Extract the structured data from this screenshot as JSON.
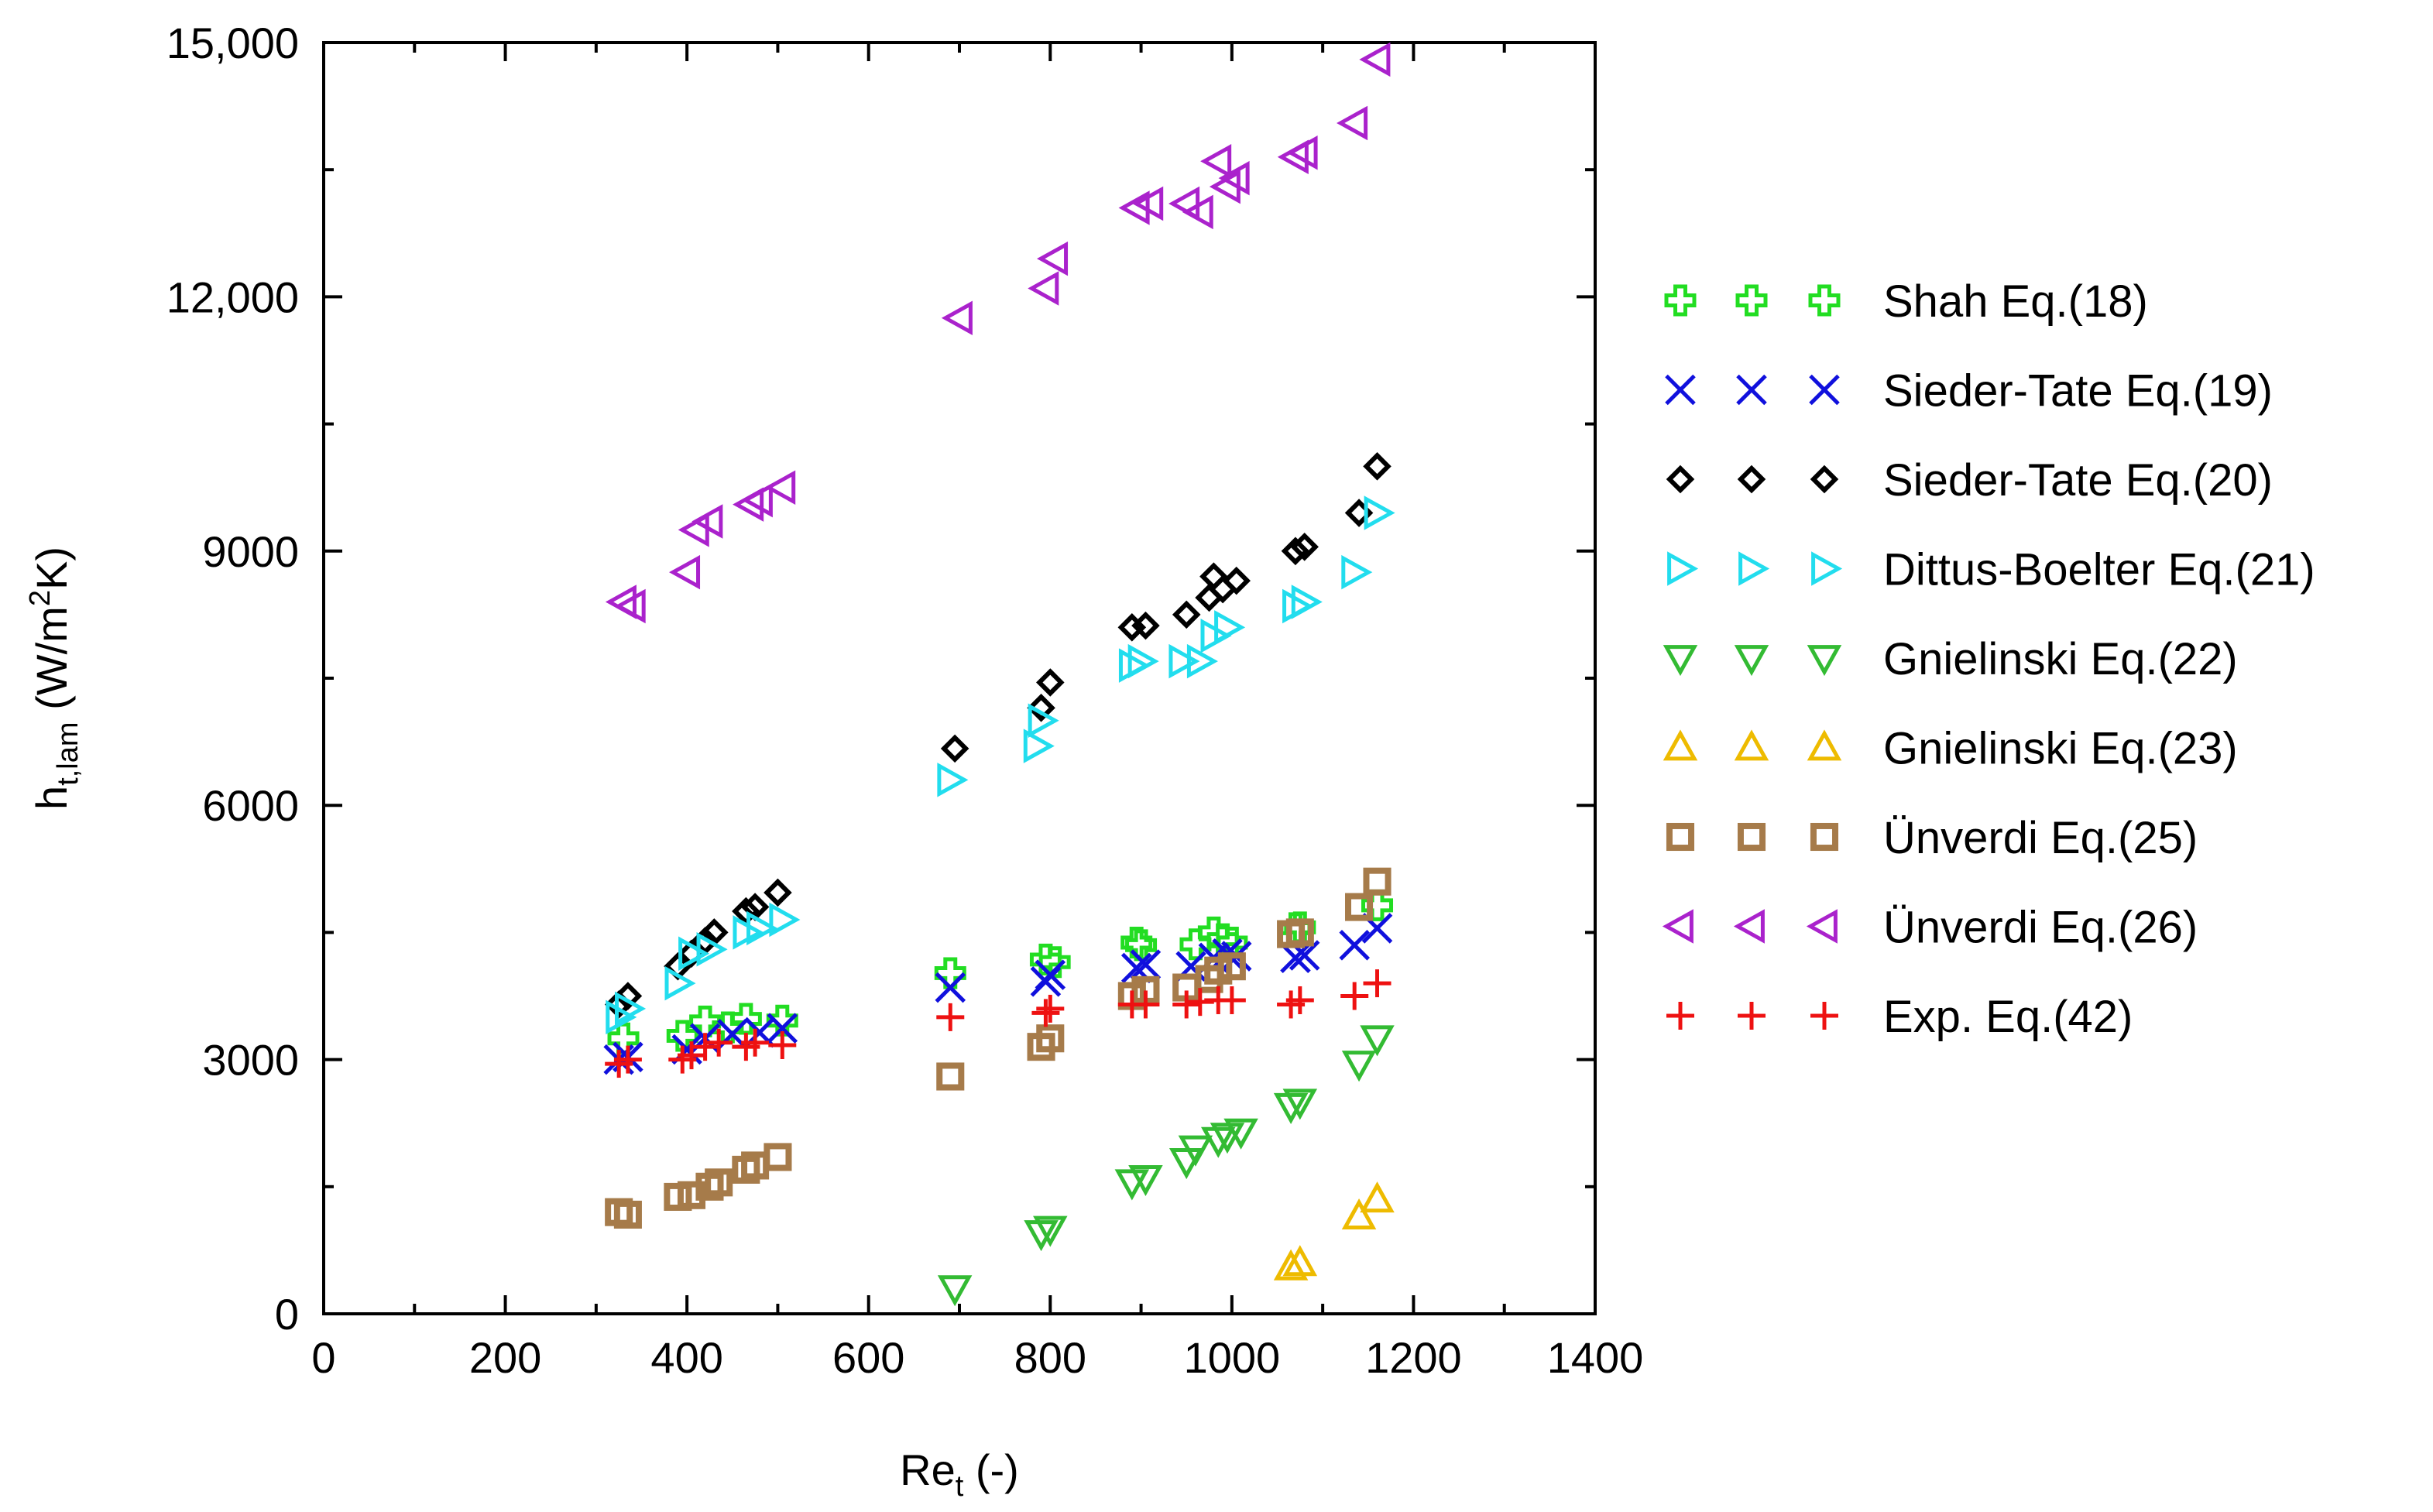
{
  "chart_data": {
    "type": "scatter",
    "title": "",
    "xlabel": {
      "main": "Re",
      "sub": "t",
      "suffix": " (-)"
    },
    "ylabel": {
      "main": "h",
      "sub": "t,lam",
      "mid": " (W/m",
      "sup": "2",
      "end": "K)"
    },
    "xlim": [
      0,
      1400
    ],
    "ylim": [
      0,
      15000
    ],
    "xticks": [
      0,
      200,
      400,
      600,
      800,
      1000,
      1200,
      1400
    ],
    "xtick_labels": [
      "0",
      "200",
      "400",
      "600",
      "800",
      "1000",
      "1200",
      "1400"
    ],
    "yticks": [
      0,
      3000,
      6000,
      9000,
      12000,
      15000
    ],
    "ytick_labels": [
      "0",
      "3000",
      "6000",
      "9000",
      "12,000",
      "15,000"
    ],
    "grid": false,
    "legend_position": "right",
    "series": [
      {
        "name": "Shah Eq.(18)",
        "marker": "cross-outline",
        "color": "#22dd22",
        "points": [
          [
            330,
            3250
          ],
          [
            395,
            3280
          ],
          [
            420,
            3450
          ],
          [
            445,
            3380
          ],
          [
            465,
            3480
          ],
          [
            505,
            3460
          ],
          [
            690,
            4020
          ],
          [
            795,
            4180
          ],
          [
            805,
            4150
          ],
          [
            895,
            4380
          ],
          [
            900,
            4350
          ],
          [
            960,
            4360
          ],
          [
            980,
            4500
          ],
          [
            990,
            4420
          ],
          [
            1000,
            4380
          ],
          [
            1070,
            4550
          ],
          [
            1075,
            4560
          ],
          [
            1160,
            4820
          ]
        ]
      },
      {
        "name": "Sieder-Tate Eq.(19)",
        "marker": "x",
        "color": "#1010dd",
        "points": [
          [
            325,
            3000
          ],
          [
            335,
            3030
          ],
          [
            400,
            3120
          ],
          [
            420,
            3250
          ],
          [
            450,
            3300
          ],
          [
            480,
            3320
          ],
          [
            505,
            3370
          ],
          [
            690,
            3850
          ],
          [
            795,
            3920
          ],
          [
            800,
            4000
          ],
          [
            895,
            4080
          ],
          [
            905,
            4120
          ],
          [
            955,
            4100
          ],
          [
            980,
            4200
          ],
          [
            995,
            4250
          ],
          [
            1005,
            4220
          ],
          [
            1070,
            4200
          ],
          [
            1080,
            4230
          ],
          [
            1135,
            4350
          ],
          [
            1160,
            4550
          ]
        ]
      },
      {
        "name": "Sieder-Tate Eq.(20)",
        "marker": "diamond",
        "color": "#000000",
        "points": [
          [
            325,
            3650
          ],
          [
            335,
            3750
          ],
          [
            390,
            4100
          ],
          [
            405,
            4250
          ],
          [
            420,
            4400
          ],
          [
            430,
            4500
          ],
          [
            465,
            4750
          ],
          [
            475,
            4800
          ],
          [
            500,
            4970
          ],
          [
            695,
            6670
          ],
          [
            790,
            7150
          ],
          [
            800,
            7450
          ],
          [
            890,
            8100
          ],
          [
            905,
            8120
          ],
          [
            950,
            8250
          ],
          [
            975,
            8450
          ],
          [
            980,
            8700
          ],
          [
            990,
            8550
          ],
          [
            1005,
            8650
          ],
          [
            1070,
            9000
          ],
          [
            1080,
            9050
          ],
          [
            1140,
            9450
          ],
          [
            1160,
            10000
          ]
        ]
      },
      {
        "name": "Dittus-Boelter Eq.(21)",
        "marker": "triangle-right",
        "color": "#22ddee",
        "points": [
          [
            325,
            3500
          ],
          [
            335,
            3600
          ],
          [
            390,
            3900
          ],
          [
            405,
            4250
          ],
          [
            425,
            4300
          ],
          [
            465,
            4500
          ],
          [
            480,
            4550
          ],
          [
            505,
            4650
          ],
          [
            690,
            6300
          ],
          [
            785,
            6700
          ],
          [
            790,
            7000
          ],
          [
            890,
            7650
          ],
          [
            900,
            7700
          ],
          [
            945,
            7700
          ],
          [
            965,
            7700
          ],
          [
            980,
            8000
          ],
          [
            995,
            8100
          ],
          [
            1070,
            8350
          ],
          [
            1080,
            8400
          ],
          [
            1135,
            8750
          ],
          [
            1160,
            9450
          ]
        ]
      },
      {
        "name": "Gnielinski Eq.(22)",
        "marker": "triangle-down",
        "color": "#33bb33",
        "points": [
          [
            695,
            300
          ],
          [
            790,
            950
          ],
          [
            800,
            1000
          ],
          [
            890,
            1550
          ],
          [
            905,
            1600
          ],
          [
            950,
            1800
          ],
          [
            960,
            1950
          ],
          [
            985,
            2050
          ],
          [
            995,
            2100
          ],
          [
            1010,
            2150
          ],
          [
            1065,
            2450
          ],
          [
            1075,
            2500
          ],
          [
            1140,
            2950
          ],
          [
            1160,
            3250
          ]
        ]
      },
      {
        "name": "Gnielinski Eq.(23)",
        "marker": "triangle-up",
        "color": "#eebb00",
        "points": [
          [
            1065,
            550
          ],
          [
            1075,
            600
          ],
          [
            1140,
            1150
          ],
          [
            1160,
            1350
          ]
        ]
      },
      {
        "name": "Ünverdi Eq.(25)",
        "marker": "square",
        "color": "#a67b4a",
        "points": [
          [
            325,
            1200
          ],
          [
            335,
            1170
          ],
          [
            390,
            1380
          ],
          [
            405,
            1400
          ],
          [
            425,
            1500
          ],
          [
            435,
            1550
          ],
          [
            465,
            1700
          ],
          [
            475,
            1750
          ],
          [
            500,
            1850
          ],
          [
            690,
            2800
          ],
          [
            790,
            3150
          ],
          [
            800,
            3250
          ],
          [
            890,
            3750
          ],
          [
            905,
            3820
          ],
          [
            950,
            3850
          ],
          [
            975,
            3950
          ],
          [
            985,
            4050
          ],
          [
            1000,
            4100
          ],
          [
            1065,
            4480
          ],
          [
            1075,
            4500
          ],
          [
            1140,
            4800
          ],
          [
            1160,
            5100
          ]
        ]
      },
      {
        "name": "Ünverdi Eq.(26)",
        "marker": "triangle-left",
        "color": "#aa22cc",
        "points": [
          [
            330,
            8400
          ],
          [
            340,
            8350
          ],
          [
            400,
            8750
          ],
          [
            410,
            9250
          ],
          [
            425,
            9350
          ],
          [
            470,
            9550
          ],
          [
            480,
            9600
          ],
          [
            505,
            9750
          ],
          [
            700,
            11750
          ],
          [
            795,
            12100
          ],
          [
            805,
            12450
          ],
          [
            895,
            13050
          ],
          [
            910,
            13100
          ],
          [
            950,
            13100
          ],
          [
            965,
            13000
          ],
          [
            985,
            13600
          ],
          [
            995,
            13300
          ],
          [
            1005,
            13400
          ],
          [
            1070,
            13650
          ],
          [
            1080,
            13700
          ],
          [
            1135,
            14050
          ],
          [
            1160,
            14800
          ]
        ]
      },
      {
        "name": "Exp. Eq.(42)",
        "marker": "plus",
        "color": "#ee1111",
        "points": [
          [
            325,
            2950
          ],
          [
            335,
            3000
          ],
          [
            395,
            3000
          ],
          [
            405,
            3050
          ],
          [
            420,
            3150
          ],
          [
            435,
            3200
          ],
          [
            465,
            3150
          ],
          [
            475,
            3200
          ],
          [
            505,
            3170
          ],
          [
            690,
            3500
          ],
          [
            795,
            3550
          ],
          [
            800,
            3600
          ],
          [
            890,
            3650
          ],
          [
            905,
            3650
          ],
          [
            950,
            3650
          ],
          [
            965,
            3680
          ],
          [
            985,
            3700
          ],
          [
            1000,
            3700
          ],
          [
            1065,
            3650
          ],
          [
            1075,
            3700
          ],
          [
            1135,
            3750
          ],
          [
            1160,
            3900
          ]
        ]
      }
    ]
  }
}
